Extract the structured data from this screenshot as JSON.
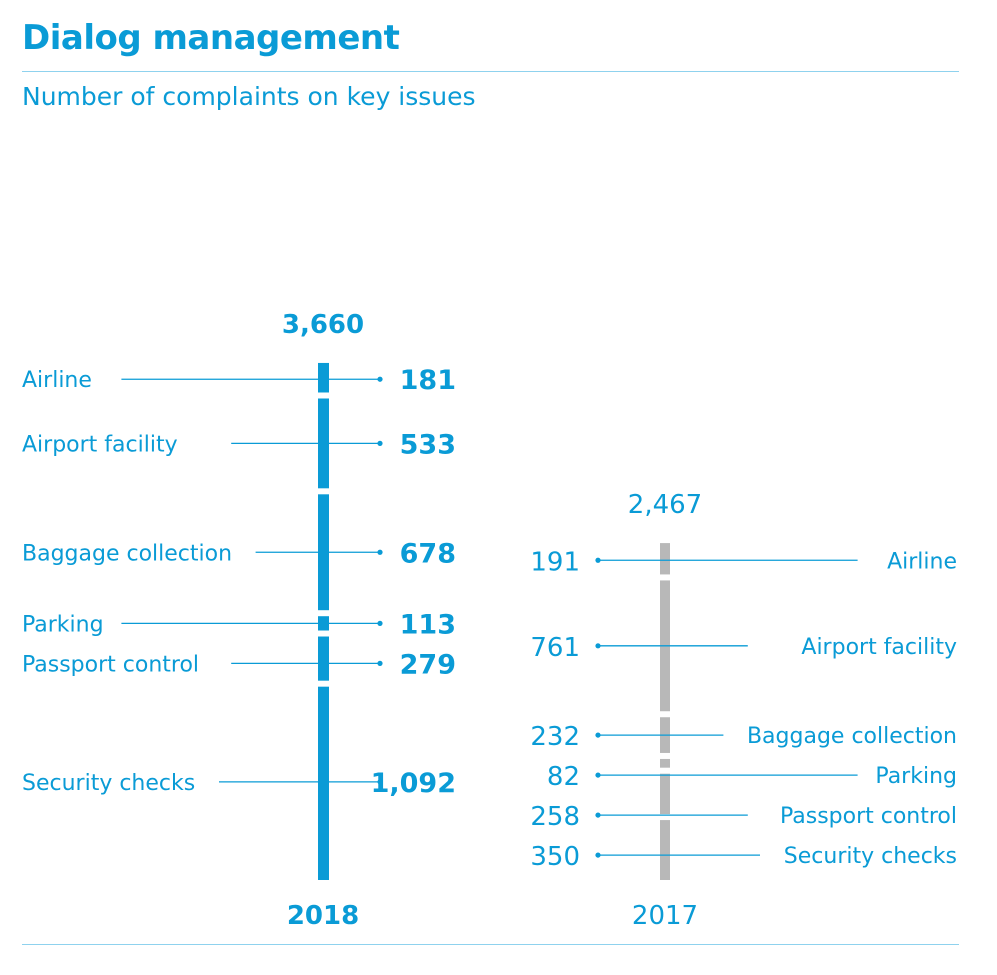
{
  "header": {
    "title": "Dialog management",
    "subtitle": "Number of complaints on key issues"
  },
  "colors": {
    "accent": "#0a9bd6",
    "bar_2018": "#0a9bd6",
    "bar_2017": "#b8b8b8"
  },
  "chart_data": {
    "type": "bar",
    "variant": "stacked-column-comparison",
    "categories": [
      "Airline",
      "Airport facility",
      "Baggage collection",
      "Parking",
      "Passport control",
      "Security checks"
    ],
    "series": [
      {
        "name": "2018",
        "total_label": "3,660",
        "total": 3660,
        "values": [
          181,
          533,
          678,
          113,
          279,
          1092
        ],
        "value_labels": [
          "181",
          "533",
          "678",
          "113",
          "279",
          "1,092"
        ],
        "labels_side": "left",
        "bold": true
      },
      {
        "name": "2017",
        "total_label": "2,467",
        "total": 2467,
        "values": [
          191,
          761,
          232,
          82,
          258,
          350
        ],
        "value_labels": [
          "191",
          "761",
          "232",
          "82",
          "258",
          "350"
        ],
        "labels_side": "right",
        "bold": false
      }
    ]
  }
}
